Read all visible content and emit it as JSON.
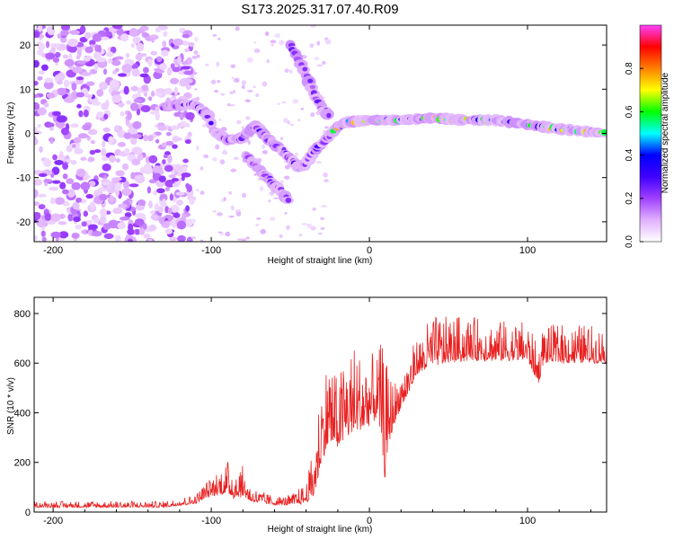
{
  "title": "S173.2025.317.07.40.R09",
  "chart_data": [
    {
      "type": "heatmap",
      "name": "spectrogram",
      "xlabel": "Height of straight line (km)",
      "ylabel": "Frequency (Hz)",
      "xlim": [
        -212,
        150
      ],
      "ylim": [
        -24.5,
        24.5
      ],
      "xticks": [
        -200,
        -100,
        0,
        100
      ],
      "yticks": [
        -20,
        -10,
        0,
        10,
        20
      ],
      "xtick_labels": [
        "-200",
        "-100",
        "0",
        "100"
      ],
      "ytick_labels": [
        "-20",
        "-10",
        "0",
        "10",
        "20"
      ],
      "colorbar": {
        "label": "Normalized spectral amplitude",
        "range": [
          0,
          1
        ],
        "ticks": [
          0.0,
          0.2,
          0.4,
          0.6,
          0.8
        ],
        "tick_labels": [
          "0.0",
          "0.2",
          "0.4",
          "0.6",
          "0.8"
        ],
        "colors": [
          "#ffffff",
          "#e0b0ff",
          "#a040ff",
          "#4000ff",
          "#0000ff",
          "#00ffff",
          "#00ff00",
          "#ffff00",
          "#ff8000",
          "#ff0000",
          "#ff40ff"
        ]
      },
      "traces": [
        {
          "name": "main-tone",
          "points": [
            [
              -130,
              6
            ],
            [
              -120,
              6.5
            ],
            [
              -110,
              6.5
            ],
            [
              -102,
              4
            ],
            [
              -98,
              0.5
            ],
            [
              -90,
              -1.5
            ],
            [
              -80,
              -1
            ],
            [
              -72,
              2
            ],
            [
              -65,
              -1
            ],
            [
              -55,
              -4
            ],
            [
              -45,
              -7.5
            ],
            [
              -40,
              -7
            ],
            [
              -35,
              -4
            ],
            [
              -25,
              -0.5
            ],
            [
              -20,
              1.5
            ],
            [
              -15,
              2.5
            ],
            [
              0,
              3
            ],
            [
              20,
              3
            ],
            [
              40,
              3.5
            ],
            [
              60,
              3
            ],
            [
              80,
              3
            ],
            [
              100,
              2
            ],
            [
              120,
              1
            ],
            [
              150,
              0
            ]
          ]
        },
        {
          "name": "lower-branch",
          "points": [
            [
              -78,
              -5
            ],
            [
              -70,
              -8
            ],
            [
              -62,
              -11
            ],
            [
              -55,
              -13.5
            ],
            [
              -50,
              -16
            ]
          ]
        },
        {
          "name": "upper-branch",
          "points": [
            [
              -50,
              20
            ],
            [
              -45,
              17
            ],
            [
              -40,
              13
            ],
            [
              -35,
              9
            ],
            [
              -30,
              6
            ],
            [
              -25,
              3.5
            ]
          ]
        }
      ]
    },
    {
      "type": "line",
      "name": "snr",
      "xlabel": "Height of straight line (km)",
      "ylabel": "SNR (10 * v/v)",
      "xlim": [
        -212,
        150
      ],
      "ylim": [
        0,
        865
      ],
      "xticks": [
        -200,
        -100,
        0,
        100
      ],
      "yticks": [
        0,
        200,
        400,
        600,
        800
      ],
      "xtick_labels": [
        "-200",
        "-100",
        "0",
        "100"
      ],
      "ytick_labels": [
        "0",
        "200",
        "400",
        "600",
        "800"
      ],
      "color": "#e82020",
      "envelope": {
        "x": [
          -212,
          -130,
          -120,
          -110,
          -100,
          -90,
          -85,
          -80,
          -75,
          -70,
          -60,
          -50,
          -40,
          -35,
          -32,
          -30,
          -25,
          -20,
          -15,
          -10,
          -5,
          0,
          5,
          8,
          10,
          12,
          15,
          18,
          20,
          25,
          30,
          40,
          60,
          100,
          107,
          110,
          150
        ],
        "base": [
          20,
          20,
          28,
          35,
          70,
          80,
          60,
          70,
          45,
          40,
          30,
          30,
          40,
          80,
          160,
          230,
          300,
          280,
          320,
          330,
          350,
          370,
          400,
          300,
          150,
          280,
          350,
          400,
          430,
          490,
          560,
          600,
          620,
          620,
          520,
          610,
          610
        ],
        "spread": [
          25,
          25,
          30,
          40,
          80,
          130,
          150,
          120,
          60,
          50,
          35,
          40,
          80,
          200,
          300,
          350,
          380,
          250,
          350,
          380,
          300,
          300,
          250,
          400,
          500,
          300,
          200,
          150,
          150,
          150,
          150,
          200,
          180,
          150,
          150,
          150,
          150
        ]
      }
    }
  ]
}
